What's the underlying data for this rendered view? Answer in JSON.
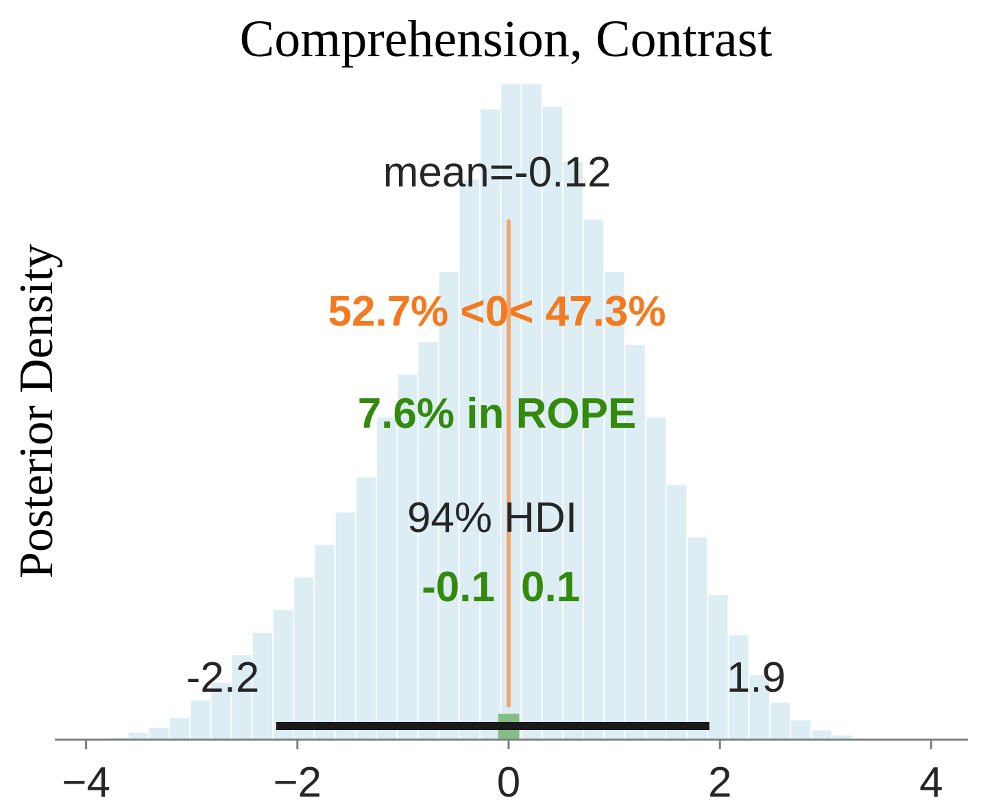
{
  "chart_data": {
    "type": "histogram",
    "title": "Comprehension, Contrast",
    "ylabel": "Posterior Density",
    "xlabel": "",
    "xlim": [
      -4.3,
      4.3
    ],
    "x_ticks": [
      -4,
      -2,
      0,
      2,
      4
    ],
    "x_tick_labels": [
      "−4",
      "−2",
      "0",
      "2",
      "4"
    ],
    "grid": false,
    "bins": {
      "start": -3.8,
      "width": 0.196,
      "heights": [
        0.01,
        0.03,
        0.05,
        0.09,
        0.16,
        0.23,
        0.34,
        0.43,
        0.52,
        0.65,
        0.78,
        0.91,
        1.05,
        1.29,
        1.46,
        1.59,
        1.87,
        2.24,
        2.52,
        2.62,
        2.62,
        2.53,
        2.31,
        2.08,
        1.87,
        1.58,
        1.29,
        1.02,
        0.81,
        0.58,
        0.42,
        0.26,
        0.15,
        0.08,
        0.04,
        0.02,
        0.005
      ],
      "color": "#dcedf4"
    },
    "ylim": [
      0,
      2.62
    ],
    "annotations": {
      "mean_text": "mean=-0.12",
      "direction_text": "52.7% <0< 47.3%",
      "rope_text": "7.6% in ROPE",
      "hdi_text": "94% HDI",
      "rope_low_text": "-0.1",
      "rope_high_text": "0.1",
      "hdi_low_text": "-2.2",
      "hdi_high_text": "1.9"
    },
    "hdi": [
      -2.2,
      1.9
    ],
    "rope": [
      -0.1,
      0.1
    ],
    "reference_value": 0,
    "reference_line_top": 2.07,
    "colors": {
      "text": "#262626",
      "direction": "#f5791f",
      "reference_line": "#f4a46a",
      "rope": "#338a0c",
      "rope_band": "#7ab87a",
      "hdi_bar": "#1a1a1a",
      "axis": "#808080"
    }
  }
}
